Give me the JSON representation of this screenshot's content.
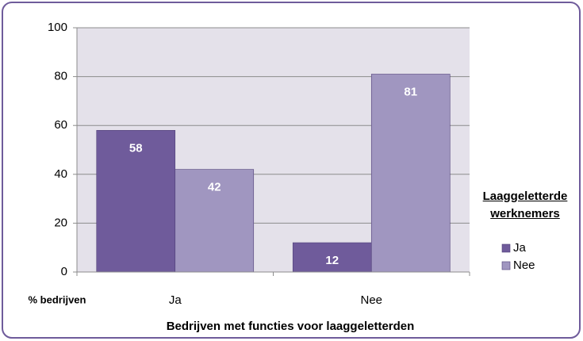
{
  "chart_data": {
    "type": "bar",
    "categories": [
      "Ja",
      "Nee"
    ],
    "series": [
      {
        "name": "Ja",
        "color": "#6f5b9b",
        "values": [
          58,
          12
        ]
      },
      {
        "name": "Nee",
        "color": "#a096c0",
        "values": [
          42,
          81
        ]
      }
    ],
    "ylim": [
      0,
      100
    ],
    "yticks": [
      0,
      20,
      40,
      60,
      80,
      100
    ],
    "grid": true,
    "y_label": "% bedrijven",
    "x_label": "Bedrijven met functies voor laaggeletterden",
    "legend_title": "Laaggeletterde werknemers",
    "legend_position": "right"
  }
}
